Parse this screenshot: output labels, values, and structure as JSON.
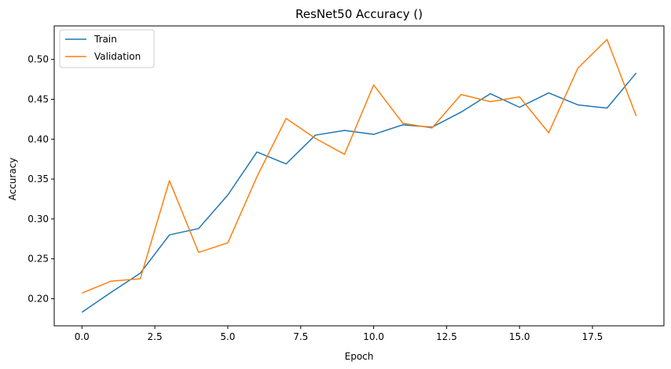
{
  "chart_data": {
    "type": "line",
    "title": "ResNet50 Accuracy ()",
    "xlabel": "Epoch",
    "ylabel": "Accuracy",
    "xlim": [
      -0.95,
      19.95
    ],
    "ylim": [
      0.166,
      0.542
    ],
    "xticks": [
      0.0,
      2.5,
      5.0,
      7.5,
      10.0,
      12.5,
      15.0,
      17.5
    ],
    "xtick_labels": [
      "0.0",
      "2.5",
      "5.0",
      "7.5",
      "10.0",
      "12.5",
      "15.0",
      "17.5"
    ],
    "yticks": [
      0.2,
      0.25,
      0.3,
      0.35,
      0.4,
      0.45,
      0.5
    ],
    "ytick_labels": [
      "0.20",
      "0.25",
      "0.30",
      "0.35",
      "0.40",
      "0.45",
      "0.50"
    ],
    "grid": false,
    "legend": "top-left",
    "x": [
      0,
      1,
      2,
      3,
      4,
      5,
      6,
      7,
      8,
      9,
      10,
      11,
      12,
      13,
      14,
      15,
      16,
      17,
      18,
      19
    ],
    "series": [
      {
        "name": "Train",
        "color": "#1f77b4",
        "values": [
          0.183,
          0.208,
          0.232,
          0.28,
          0.288,
          0.33,
          0.384,
          0.369,
          0.405,
          0.411,
          0.406,
          0.418,
          0.415,
          0.434,
          0.457,
          0.44,
          0.458,
          0.443,
          0.439,
          0.483
        ]
      },
      {
        "name": "Validation",
        "color": "#ff7f0e",
        "values": [
          0.207,
          0.222,
          0.225,
          0.348,
          0.258,
          0.27,
          0.353,
          0.426,
          0.401,
          0.381,
          0.468,
          0.42,
          0.414,
          0.456,
          0.447,
          0.453,
          0.408,
          0.489,
          0.525,
          0.429
        ]
      }
    ]
  }
}
